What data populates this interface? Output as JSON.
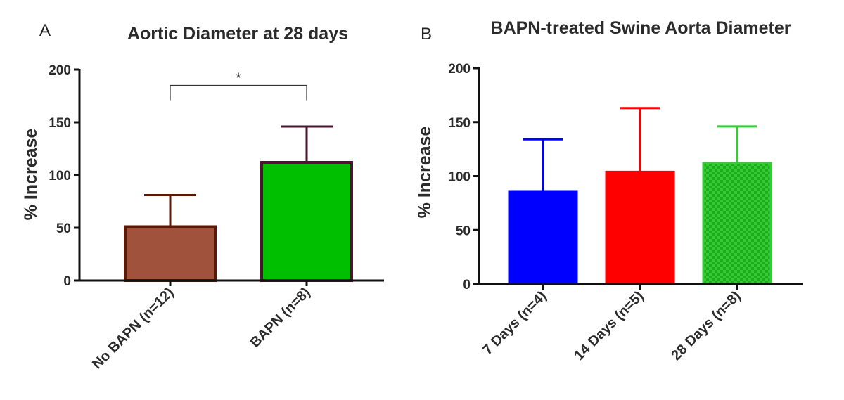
{
  "panels": {
    "a_label": "A",
    "b_label": "B"
  },
  "chart_data": [
    {
      "type": "bar",
      "title": "Aortic Diameter at 28 days",
      "xlabel": "",
      "ylabel": "% Increase",
      "ylim": [
        0,
        200
      ],
      "yticks": [
        0,
        50,
        100,
        150,
        200
      ],
      "categories": [
        "No BAPN (n=12)",
        "BAPN (n=8)"
      ],
      "values": [
        51,
        112
      ],
      "errors": [
        30,
        34
      ],
      "fill_colors": [
        "#a0523d",
        "#00bf00"
      ],
      "edge_colors": [
        "#5a1a08",
        "#4a1530"
      ],
      "significance": {
        "between": [
          0,
          1
        ],
        "label": "*"
      }
    },
    {
      "type": "bar",
      "title": "BAPN-treated Swine Aorta Diameter",
      "xlabel": "",
      "ylabel": "% Increase",
      "ylim": [
        0,
        200
      ],
      "yticks": [
        0,
        50,
        100,
        150,
        200
      ],
      "categories": [
        "7 Days (n=4)",
        "14 Days (n=5)",
        "28 Days (n=8)"
      ],
      "values": [
        86,
        104,
        112
      ],
      "errors": [
        48,
        59,
        34
      ],
      "fill_colors": [
        "#0000ff",
        "#ff0000",
        "#26c326"
      ],
      "edge_colors": [
        "#0000ff",
        "#ff0000",
        "#33cc33"
      ],
      "patterns": [
        "none",
        "none",
        "checker"
      ]
    }
  ]
}
